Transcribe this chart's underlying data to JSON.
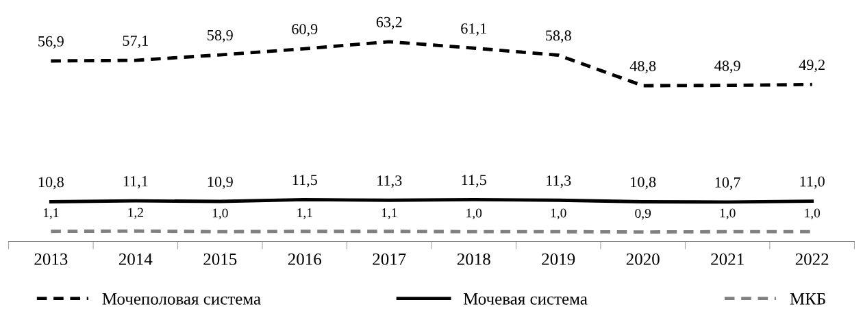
{
  "chart_data": {
    "type": "line",
    "categories": [
      "2013",
      "2014",
      "2015",
      "2016",
      "2017",
      "2018",
      "2019",
      "2020",
      "2021",
      "2022"
    ],
    "series": [
      {
        "name": "Мочеполовая система",
        "color": "#000000",
        "line_style": "dashed",
        "values": [
          56.9,
          57.1,
          58.9,
          60.9,
          63.2,
          61.1,
          58.8,
          48.8,
          48.9,
          49.2
        ],
        "value_labels": [
          "56,9",
          "57,1",
          "58,9",
          "60,9",
          "63,2",
          "61,1",
          "58,8",
          "48,8",
          "48,9",
          "49,2"
        ]
      },
      {
        "name": "Мочевая система",
        "color": "#000000",
        "line_style": "solid",
        "values": [
          10.8,
          11.1,
          10.9,
          11.5,
          11.3,
          11.5,
          11.3,
          10.8,
          10.7,
          11.0
        ],
        "value_labels": [
          "10,8",
          "11,1",
          "10,9",
          "11,5",
          "11,3",
          "11,5",
          "11,3",
          "10,8",
          "10,7",
          "11,0"
        ]
      },
      {
        "name": "МКБ",
        "color": "#808080",
        "line_style": "dashed",
        "values": [
          1.1,
          1.2,
          1.0,
          1.1,
          1.1,
          1.0,
          1.0,
          0.9,
          1.0,
          1.0
        ],
        "value_labels": [
          "1,1",
          "1,2",
          "1,0",
          "1,1",
          "1,1",
          "1,0",
          "1,0",
          "0,9",
          "1,0",
          "1,0"
        ]
      }
    ],
    "tick_labels": "x",
    "legend": "bottom",
    "marker": "none"
  }
}
